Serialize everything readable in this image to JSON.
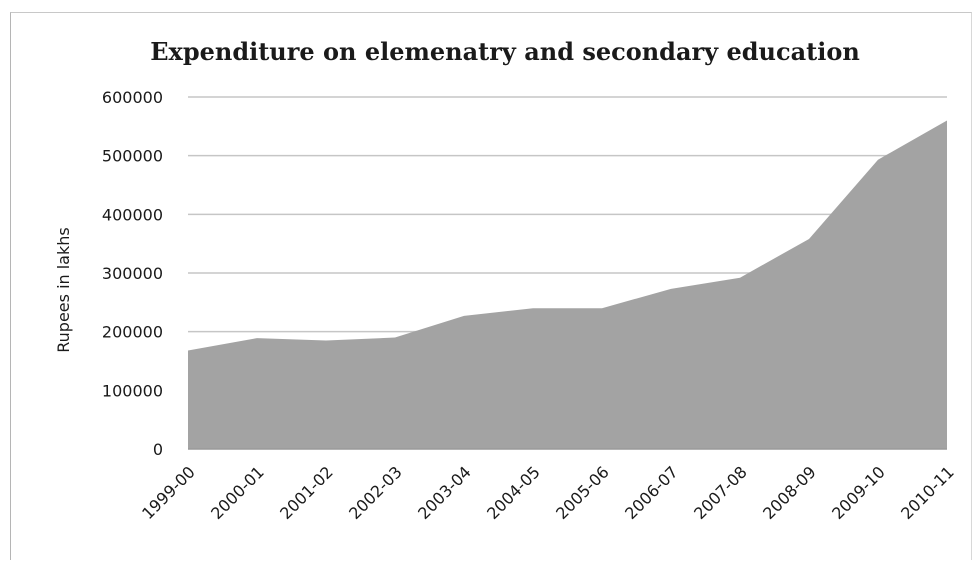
{
  "chart_data": {
    "type": "area",
    "title": "Expenditure on elemenatry and secondary education",
    "xlabel": "",
    "ylabel": "Rupees in lakhs",
    "ylim": [
      0,
      600000
    ],
    "yticks": [
      0,
      100000,
      200000,
      300000,
      400000,
      500000,
      600000
    ],
    "categories": [
      "1999-00",
      "2000-01",
      "2001-02",
      "2002-03",
      "2003-04",
      "2004-05",
      "2005-06",
      "2006-07",
      "2007-08",
      "2008-09",
      "2009-10",
      "2010-11"
    ],
    "series": [
      {
        "values": [
          168000,
          189000,
          185000,
          190000,
          227000,
          240000,
          240000,
          273000,
          292000,
          358000,
          493000,
          560000
        ]
      }
    ],
    "grid": true,
    "legend": "none",
    "colors": {
      "area": "#a3a3a3",
      "grid": "#c6c6c6",
      "axis": "#9a9a9a",
      "text": "#1a1a1a"
    }
  }
}
